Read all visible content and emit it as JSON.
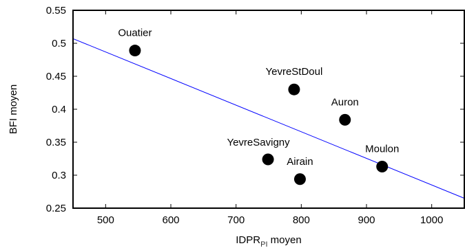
{
  "chart_data": {
    "type": "scatter",
    "title": "",
    "xlabel": {
      "main": "IDPR",
      "subscript": "PI",
      "suffix": " moyen"
    },
    "ylabel": "BFI moyen",
    "xlim": [
      450,
      1050
    ],
    "ylim": [
      0.25,
      0.55
    ],
    "xticks": [
      500,
      600,
      700,
      800,
      900,
      1000
    ],
    "yticks": [
      "0.25",
      "0.3",
      "0.35",
      "0.4",
      "0.45",
      "0.5",
      "0.55"
    ],
    "grid": false,
    "point_color": "#000000",
    "line_color": "#0000ff",
    "points": [
      {
        "label": "Ouatier",
        "x": 545,
        "y": 0.489,
        "label_pos": "above"
      },
      {
        "label": "YevreStDoul",
        "x": 789,
        "y": 0.43,
        "label_pos": "above"
      },
      {
        "label": "Auron",
        "x": 867,
        "y": 0.384,
        "label_pos": "above"
      },
      {
        "label": "YevreSavigny",
        "x": 749,
        "y": 0.324,
        "label_pos": "above-left"
      },
      {
        "label": "Airain",
        "x": 798,
        "y": 0.294,
        "label_pos": "above"
      },
      {
        "label": "Moulon",
        "x": 924,
        "y": 0.313,
        "label_pos": "above"
      }
    ],
    "trendline": {
      "x": [
        450,
        1050
      ],
      "y": [
        0.507,
        0.265
      ]
    }
  }
}
